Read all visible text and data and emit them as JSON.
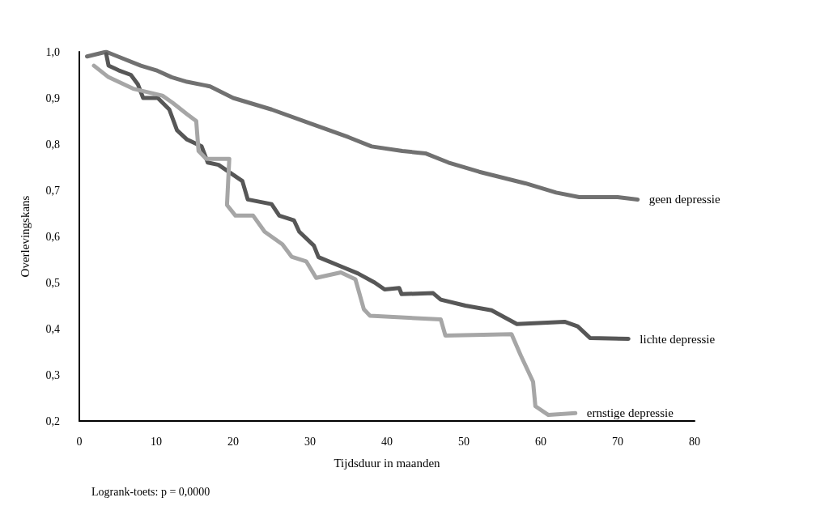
{
  "chart_data": {
    "type": "line",
    "xlabel": "Tijdsduur in maanden",
    "ylabel": "Overlevingskans",
    "xlim": [
      0,
      80
    ],
    "xticks": [
      0,
      10,
      20,
      30,
      40,
      50,
      60,
      70,
      80
    ],
    "ylim": [
      0.2,
      1.0
    ],
    "yticks": [
      {
        "value": 0.2,
        "label": "0,2"
      },
      {
        "value": 0.3,
        "label": "0,3"
      },
      {
        "value": 0.4,
        "label": "0,4"
      },
      {
        "value": 0.5,
        "label": "0,5"
      },
      {
        "value": 0.6,
        "label": "0,6"
      },
      {
        "value": 0.7,
        "label": "0,7"
      },
      {
        "value": 0.8,
        "label": "0,8"
      },
      {
        "value": 0.9,
        "label": "0,9"
      },
      {
        "value": 1.0,
        "label": "1,0"
      }
    ],
    "grid": false,
    "legend": false,
    "marker": "none",
    "line_style": "solid",
    "annotations": [
      "Logrank-toets: p = 0,0000"
    ],
    "series": [
      {
        "name": "geen depressie",
        "color": "#717171",
        "x": [
          1,
          3.5,
          5,
          8,
          10,
          12,
          14,
          17,
          20,
          25,
          30,
          35,
          38,
          42,
          45,
          48,
          52,
          58,
          62,
          65,
          70,
          72.6
        ],
        "values": [
          0.99,
          1.0,
          0.99,
          0.97,
          0.96,
          0.945,
          0.935,
          0.925,
          0.9,
          0.875,
          0.845,
          0.815,
          0.795,
          0.785,
          0.78,
          0.76,
          0.74,
          0.715,
          0.695,
          0.685,
          0.685,
          0.68
        ]
      },
      {
        "name": "lichte depressie",
        "color": "#575757",
        "x": [
          3.5,
          3.8,
          5.1,
          6.7,
          7.6,
          8.3,
          10.2,
          11.7,
          12.7,
          14,
          15.9,
          16.7,
          18.1,
          21.2,
          21.9,
          25,
          26,
          27.9,
          28.6,
          30.5,
          31.1,
          34,
          36.2,
          38.4,
          39.7,
          41.6,
          41.9,
          46,
          47,
          50.2,
          53.6,
          56.9,
          63.1,
          64.8,
          66.4,
          71.4
        ],
        "values": [
          0.995,
          0.97,
          0.96,
          0.95,
          0.93,
          0.9,
          0.9,
          0.875,
          0.83,
          0.81,
          0.795,
          0.76,
          0.755,
          0.72,
          0.68,
          0.67,
          0.645,
          0.635,
          0.61,
          0.58,
          0.555,
          0.535,
          0.52,
          0.5,
          0.485,
          0.488,
          0.475,
          0.477,
          0.463,
          0.45,
          0.44,
          0.41,
          0.415,
          0.405,
          0.38,
          0.378
        ]
      },
      {
        "name": "ernstige depressie",
        "color": "#a6a6a6",
        "x": [
          1.9,
          3.8,
          7,
          10.8,
          12.1,
          14,
          15.2,
          15.5,
          16.5,
          19.5,
          19.2,
          20.3,
          22.6,
          24.1,
          26.4,
          27.6,
          29.5,
          30.8,
          34,
          35.9,
          37,
          37.8,
          47,
          47.6,
          56.2,
          57.4,
          59,
          59.3,
          61,
          64.5
        ],
        "values": [
          0.97,
          0.945,
          0.92,
          0.905,
          0.89,
          0.865,
          0.85,
          0.785,
          0.768,
          0.768,
          0.668,
          0.645,
          0.645,
          0.61,
          0.583,
          0.556,
          0.546,
          0.51,
          0.522,
          0.507,
          0.442,
          0.428,
          0.42,
          0.385,
          0.388,
          0.342,
          0.285,
          0.232,
          0.213,
          0.217
        ]
      }
    ]
  }
}
